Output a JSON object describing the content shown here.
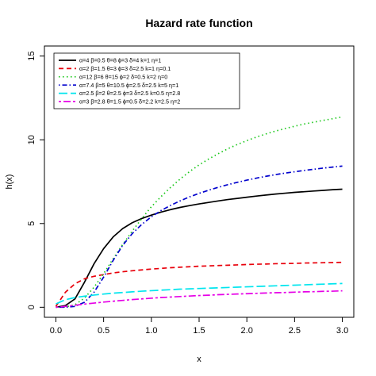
{
  "chart_data": {
    "type": "line",
    "title": "Hazard rate function",
    "xlabel": "x",
    "ylabel": "h(x)",
    "xlim": [
      0.0,
      3.0
    ],
    "ylim": [
      0,
      15
    ],
    "xticks": [
      "0.0",
      "0.5",
      "1.0",
      "1.5",
      "2.0",
      "2.5",
      "3.0"
    ],
    "xtick_values": [
      0.0,
      0.5,
      1.0,
      1.5,
      2.0,
      2.5,
      3.0
    ],
    "yticks": [
      "0",
      "5",
      "10",
      "15"
    ],
    "ytick_values": [
      0,
      5,
      10,
      15
    ],
    "grid": false,
    "legend_position": "top-left",
    "x": [
      0.0,
      0.1,
      0.2,
      0.3,
      0.4,
      0.5,
      0.6,
      0.7,
      0.8,
      0.9,
      1.0,
      1.1,
      1.2,
      1.3,
      1.4,
      1.5,
      1.6,
      1.7,
      1.8,
      1.9,
      2.0,
      2.1,
      2.2,
      2.3,
      2.4,
      2.5,
      2.6,
      2.7,
      2.8,
      2.9,
      3.0
    ],
    "series": [
      {
        "name": "α=4  β=0.5  θ=8  ϕ=3  δ=4  k=1  η=1",
        "color": "#000000",
        "dash": "solid",
        "values": [
          0.0,
          0.1,
          0.5,
          1.5,
          2.6,
          3.5,
          4.2,
          4.7,
          5.05,
          5.3,
          5.5,
          5.68,
          5.83,
          5.96,
          6.07,
          6.17,
          6.26,
          6.35,
          6.43,
          6.5,
          6.57,
          6.64,
          6.7,
          6.76,
          6.81,
          6.86,
          6.9,
          6.94,
          6.98,
          7.02,
          7.05
        ]
      },
      {
        "name": "α=2  β=1.5  θ=3  ϕ=3  δ=2.5  k=1  η=0.1",
        "color": "#e8000b",
        "dash": "dashed",
        "values": [
          0.05,
          0.9,
          1.4,
          1.7,
          1.85,
          1.95,
          2.05,
          2.12,
          2.18,
          2.23,
          2.28,
          2.32,
          2.36,
          2.39,
          2.42,
          2.45,
          2.47,
          2.49,
          2.51,
          2.53,
          2.55,
          2.57,
          2.58,
          2.6,
          2.61,
          2.62,
          2.64,
          2.65,
          2.66,
          2.67,
          2.68
        ]
      },
      {
        "name": "α=12  β=6  θ=15  ϕ=2  δ=0.5  k=2  η=0",
        "color": "#18c718",
        "dash": "dotted",
        "values": [
          0.0,
          0.02,
          0.15,
          0.55,
          1.2,
          2.0,
          2.9,
          3.75,
          4.55,
          5.3,
          6.0,
          6.6,
          7.15,
          7.65,
          8.1,
          8.5,
          8.85,
          9.17,
          9.46,
          9.72,
          9.95,
          10.16,
          10.35,
          10.52,
          10.67,
          10.81,
          10.94,
          11.05,
          11.16,
          11.26,
          11.37
        ]
      },
      {
        "name": "α=7.4  β=5  θ=10.5  ϕ=2.5  δ=2.5  k=5  η=1",
        "color": "#0000cd",
        "dash": "dashdot",
        "values": [
          0.0,
          0.0,
          0.05,
          0.3,
          0.9,
          1.8,
          2.8,
          3.7,
          4.4,
          4.95,
          5.4,
          5.77,
          6.08,
          6.35,
          6.59,
          6.8,
          6.99,
          7.16,
          7.32,
          7.46,
          7.59,
          7.71,
          7.82,
          7.92,
          8.01,
          8.09,
          8.17,
          8.24,
          8.31,
          8.37,
          8.43
        ]
      },
      {
        "name": "α=2.5  β=2  θ=2.5  ϕ=3  δ=2.5  k=0.5  η=2.8",
        "color": "#00e5ee",
        "dash": "longdash",
        "values": [
          0.2,
          0.45,
          0.58,
          0.66,
          0.73,
          0.79,
          0.84,
          0.88,
          0.92,
          0.96,
          0.99,
          1.02,
          1.05,
          1.08,
          1.1,
          1.12,
          1.14,
          1.16,
          1.18,
          1.2,
          1.22,
          1.24,
          1.26,
          1.28,
          1.3,
          1.32,
          1.34,
          1.36,
          1.38,
          1.4,
          1.42
        ]
      },
      {
        "name": "α=3  β=2.8  θ=1.5  ϕ=0.5  δ=2.2  k=2.5  η=2",
        "color": "#e600e6",
        "dash": "twodash",
        "values": [
          0.0,
          0.05,
          0.12,
          0.19,
          0.25,
          0.31,
          0.36,
          0.41,
          0.46,
          0.5,
          0.54,
          0.58,
          0.61,
          0.64,
          0.67,
          0.7,
          0.72,
          0.75,
          0.77,
          0.79,
          0.81,
          0.83,
          0.85,
          0.87,
          0.88,
          0.9,
          0.92,
          0.93,
          0.95,
          0.96,
          0.98
        ]
      }
    ]
  }
}
